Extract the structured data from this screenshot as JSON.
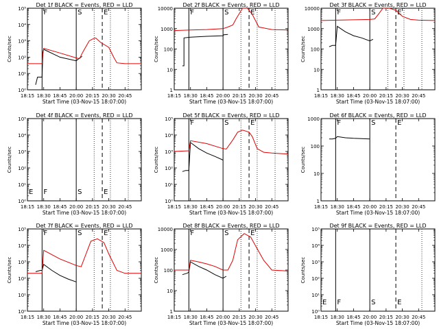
{
  "figure": {
    "xlabel": "Start Time (03-Nov-15 18:07:00)",
    "ylabel": "Counts/sec",
    "x_tick_labels": [
      "18:15",
      "18:30",
      "18:45",
      "20:00",
      "20:15",
      "20:30",
      "20:45"
    ],
    "colors": {
      "events": "#000000",
      "lld": "#e00000"
    }
  },
  "chart_data": [
    {
      "type": "line",
      "title": "Det 1f BLACK = Events, RED = LLD",
      "y_scale": "log",
      "ylim": [
        1,
        100000
      ],
      "y_tick_labels": [
        "10⁰",
        "10¹",
        "10²",
        "10³",
        "10⁴",
        "10⁵"
      ],
      "x_index_range": [
        0,
        7
      ],
      "x_tick_labels": [
        "18:15",
        "18:30",
        "18:45",
        "20:00",
        "20:15",
        "20:30",
        "20:45"
      ],
      "series": [
        {
          "name": "BLACK = Events",
          "x": [
            0.5,
            0.62,
            0.9,
            0.95,
            1.0,
            2.0,
            3.0,
            3.15,
            3.35,
            3.36,
            3.37
          ],
          "y": [
            2,
            6,
            6,
            200,
            300,
            100,
            60,
            80,
            110,
            110,
            null
          ]
        },
        {
          "name": "RED = LLD",
          "x": [
            0,
            0.9,
            0.95,
            1.0,
            2.0,
            3.0,
            3.2,
            3.4,
            3.8,
            4.0,
            4.2,
            4.5,
            5.0,
            5.3,
            5.5,
            6.0,
            7.0
          ],
          "y": [
            40,
            40,
            150,
            350,
            180,
            90,
            80,
            200,
            1000,
            1300,
            1500,
            800,
            400,
            100,
            45,
            40,
            40
          ]
        }
      ],
      "markers": [
        {
          "label": "F",
          "x": 0.9,
          "style": "solid"
        },
        {
          "label": "S",
          "x": 3.0,
          "style": "solid"
        },
        {
          "label": "E",
          "x": 4.6,
          "style": "dashed"
        }
      ],
      "dotted_x": [
        4.1,
        5.1,
        6.2
      ]
    },
    {
      "type": "line",
      "title": "Det 2f BLACK = Events, RED = LLD",
      "y_scale": "log",
      "ylim": [
        1,
        10000
      ],
      "y_tick_labels": [
        "1",
        "10",
        "100",
        "1000",
        "10000"
      ],
      "x_index_range": [
        0,
        7
      ],
      "x_tick_labels": [
        "18:15",
        "18:30",
        "18:45",
        "20:00",
        "20:15",
        "20:30",
        "20:45"
      ],
      "series": [
        {
          "name": "BLACK = Events",
          "x": [
            0.5,
            0.6,
            0.6,
            1.0,
            2.0,
            3.0,
            3.05,
            3.3
          ],
          "y": [
            15,
            15,
            350,
            380,
            420,
            450,
            500,
            520
          ]
        },
        {
          "name": "RED = LLD",
          "x": [
            0,
            1.0,
            2.0,
            3.0,
            3.3,
            3.6,
            3.8,
            4.2,
            4.5,
            4.8,
            5.2,
            6.0,
            7.0
          ],
          "y": [
            800,
            850,
            900,
            1000,
            1200,
            1500,
            3000,
            10000,
            10000,
            5000,
            1200,
            900,
            850
          ]
        }
      ],
      "markers": [
        {
          "label": "F",
          "x": 0.9,
          "style": "solid"
        },
        {
          "label": "S",
          "x": 3.0,
          "style": "solid"
        },
        {
          "label": "E",
          "x": 4.6,
          "style": "dashed"
        }
      ],
      "dotted_x": [
        4.1,
        5.1,
        6.2
      ]
    },
    {
      "type": "line",
      "title": "Det 3f BLACK = Events, RED = LLD",
      "y_scale": "log",
      "ylim": [
        1,
        10000
      ],
      "y_tick_labels": [
        "1",
        "10",
        "100",
        "1000",
        "10000"
      ],
      "x_index_range": [
        0,
        7
      ],
      "x_tick_labels": [
        "18:15",
        "18:30",
        "18:45",
        "20:00",
        "20:15",
        "20:30",
        "20:45"
      ],
      "series": [
        {
          "name": "BLACK = Events",
          "x": [
            0.5,
            0.7,
            0.9,
            1.0,
            1.5,
            2.0,
            2.5,
            3.0,
            3.2
          ],
          "y": [
            130,
            150,
            150,
            1300,
            700,
            450,
            350,
            250,
            300
          ]
        },
        {
          "name": "RED = LLD",
          "x": [
            0,
            1.0,
            2.0,
            3.0,
            3.3,
            3.6,
            3.8,
            4.2,
            4.6,
            5.0,
            5.5,
            6.0,
            7.0
          ],
          "y": [
            2500,
            2600,
            2700,
            2800,
            3000,
            6000,
            10000,
            10000,
            8000,
            4000,
            2800,
            2600,
            2500
          ]
        }
      ],
      "markers": [
        {
          "label": "F",
          "x": 0.9,
          "style": "solid"
        },
        {
          "label": "S",
          "x": 3.0,
          "style": "solid"
        },
        {
          "label": "E",
          "x": 4.6,
          "style": "dashed"
        }
      ],
      "dotted_x": [
        4.1,
        5.1,
        6.2
      ]
    },
    {
      "type": "line",
      "title": "Det 4f BLACK = Events, RED = LLD",
      "y_scale": "log",
      "ylim": [
        1,
        100000
      ],
      "y_tick_labels": [
        "10⁰",
        "10¹",
        "10²",
        "10³",
        "10⁴",
        "10⁵"
      ],
      "x_index_range": [
        0,
        7
      ],
      "x_tick_labels": [
        "18:15",
        "18:30",
        "18:45",
        "20:00",
        "20:15",
        "20:30",
        "20:45"
      ],
      "series": [],
      "markers": [
        {
          "label": "F",
          "x": 0.9,
          "style": "solid"
        },
        {
          "label": "S",
          "x": 3.0,
          "style": "solid"
        },
        {
          "label": "E",
          "x": 4.6,
          "style": "dashed"
        }
      ],
      "dotted_x": [
        4.1,
        5.1,
        6.2
      ]
    },
    {
      "type": "line",
      "title": "Det 5f BLACK = Events, RED = LLD",
      "y_scale": "log",
      "ylim": [
        1,
        100000
      ],
      "y_tick_labels": [
        "10⁰",
        "10¹",
        "10²",
        "10³",
        "10⁴",
        "10⁵"
      ],
      "x_index_range": [
        0,
        7
      ],
      "x_tick_labels": [
        "18:15",
        "18:30",
        "18:45",
        "20:00",
        "20:15",
        "20:30",
        "20:45"
      ],
      "series": [
        {
          "name": "BLACK = Events",
          "x": [
            0.5,
            0.7,
            0.9,
            1.0,
            1.5,
            2.0,
            2.5,
            3.0
          ],
          "y": [
            60,
            70,
            70,
            3500,
            1500,
            800,
            500,
            300
          ]
        },
        {
          "name": "RED = LLD",
          "x": [
            0,
            0.9,
            1.0,
            2.0,
            3.0,
            3.2,
            3.6,
            3.9,
            4.2,
            4.6,
            4.8,
            5.1,
            5.5,
            6.0,
            7.0
          ],
          "y": [
            1000,
            1100,
            4500,
            3000,
            1500,
            1400,
            5000,
            15000,
            20000,
            15000,
            8000,
            1500,
            900,
            800,
            700
          ]
        }
      ],
      "markers": [
        {
          "label": "F",
          "x": 0.9,
          "style": "solid"
        },
        {
          "label": "S",
          "x": 3.0,
          "style": "solid"
        },
        {
          "label": "E",
          "x": 4.6,
          "style": "dashed"
        }
      ],
      "dotted_x": [
        4.1,
        5.1,
        6.2
      ]
    },
    {
      "type": "line",
      "title": "Det 6f BLACK = Events, RED = LLD",
      "y_scale": "log",
      "ylim": [
        1,
        1000
      ],
      "y_tick_labels": [
        "1",
        "10",
        "100",
        "1000"
      ],
      "x_index_range": [
        0,
        7
      ],
      "x_tick_labels": [
        "18:15",
        "18:30",
        "18:45",
        "20:00",
        "20:15",
        "20:30",
        "20:45"
      ],
      "series": [
        {
          "name": "BLACK = Events",
          "x": [
            0.5,
            0.7,
            0.9,
            1.0,
            1.5,
            2.0,
            2.5,
            3.0
          ],
          "y": [
            180,
            180,
            190,
            220,
            200,
            190,
            185,
            180
          ]
        }
      ],
      "markers": [
        {
          "label": "F",
          "x": 0.9,
          "style": "solid"
        },
        {
          "label": "S",
          "x": 3.0,
          "style": "solid"
        },
        {
          "label": "E",
          "x": 4.6,
          "style": "dashed"
        }
      ],
      "dotted_x": []
    },
    {
      "type": "line",
      "title": "Det 7f BLACK = Events, RED = LLD",
      "y_scale": "log",
      "ylim": [
        1,
        100000
      ],
      "y_tick_labels": [
        "10⁰",
        "10¹",
        "10²",
        "10³",
        "10⁴",
        "10⁵"
      ],
      "x_index_range": [
        0,
        7
      ],
      "x_tick_labels": [
        "18:15",
        "18:30",
        "18:45",
        "20:00",
        "20:15",
        "20:30",
        "20:45"
      ],
      "series": [
        {
          "name": "BLACK = Events",
          "x": [
            0.5,
            0.8,
            0.9,
            1.0,
            1.5,
            2.0,
            2.5,
            3.0
          ],
          "y": [
            250,
            300,
            300,
            700,
            300,
            150,
            90,
            60
          ]
        },
        {
          "name": "RED = LLD",
          "x": [
            0,
            0.9,
            1.0,
            2.0,
            3.0,
            3.3,
            3.6,
            3.9,
            4.3,
            4.7,
            5.0,
            5.5,
            6.0,
            7.0
          ],
          "y": [
            200,
            200,
            5000,
            1500,
            600,
            500,
            3000,
            18000,
            25000,
            15000,
            3000,
            300,
            200,
            200
          ]
        }
      ],
      "markers": [
        {
          "label": "F",
          "x": 0.9,
          "style": "solid"
        },
        {
          "label": "S",
          "x": 3.0,
          "style": "solid"
        },
        {
          "label": "E",
          "x": 4.6,
          "style": "dashed"
        }
      ],
      "dotted_x": [
        4.1,
        5.1,
        6.2
      ]
    },
    {
      "type": "line",
      "title": "Det 8f BLACK = Events, RED = LLD",
      "y_scale": "log",
      "ylim": [
        1,
        10000
      ],
      "y_tick_labels": [
        "1",
        "10",
        "100",
        "1000",
        "10000"
      ],
      "x_index_range": [
        0,
        7
      ],
      "x_tick_labels": [
        "18:15",
        "18:30",
        "18:45",
        "20:00",
        "20:15",
        "20:30",
        "20:45"
      ],
      "series": [
        {
          "name": "BLACK = Events",
          "x": [
            0.5,
            0.8,
            0.9,
            1.0,
            1.5,
            2.0,
            2.5,
            3.0,
            3.2
          ],
          "y": [
            60,
            70,
            80,
            250,
            150,
            100,
            60,
            40,
            50
          ]
        },
        {
          "name": "RED = LLD",
          "x": [
            0,
            0.9,
            1.0,
            1.5,
            2.0,
            2.5,
            3.0,
            3.3,
            3.6,
            3.9,
            4.3,
            4.7,
            5.0,
            5.5,
            6.0,
            7.0
          ],
          "y": [
            100,
            100,
            300,
            250,
            200,
            150,
            100,
            100,
            300,
            3000,
            6000,
            4000,
            1500,
            300,
            100,
            90
          ]
        }
      ],
      "markers": [
        {
          "label": "F",
          "x": 0.9,
          "style": "solid"
        },
        {
          "label": "S",
          "x": 3.0,
          "style": "solid"
        },
        {
          "label": "E",
          "x": 4.6,
          "style": "dashed"
        }
      ],
      "dotted_x": [
        4.1,
        5.1,
        6.2
      ]
    },
    {
      "type": "line",
      "title": "Det 9f BLACK = Events, RED = LLD",
      "y_scale": "log",
      "ylim": [
        1,
        100000
      ],
      "y_tick_labels": [
        "10⁰",
        "10¹",
        "10²",
        "10³",
        "10⁴",
        "10⁵"
      ],
      "x_index_range": [
        0,
        7
      ],
      "x_tick_labels": [
        "18:15",
        "18:30",
        "18:45",
        "20:00",
        "20:15",
        "20:30",
        "20:45"
      ],
      "series": [],
      "markers": [
        {
          "label": "F",
          "x": 0.9,
          "style": "solid"
        },
        {
          "label": "S",
          "x": 3.0,
          "style": "solid"
        },
        {
          "label": "E",
          "x": 4.6,
          "style": "dashed"
        }
      ],
      "dotted_x": [
        6.2
      ]
    }
  ]
}
